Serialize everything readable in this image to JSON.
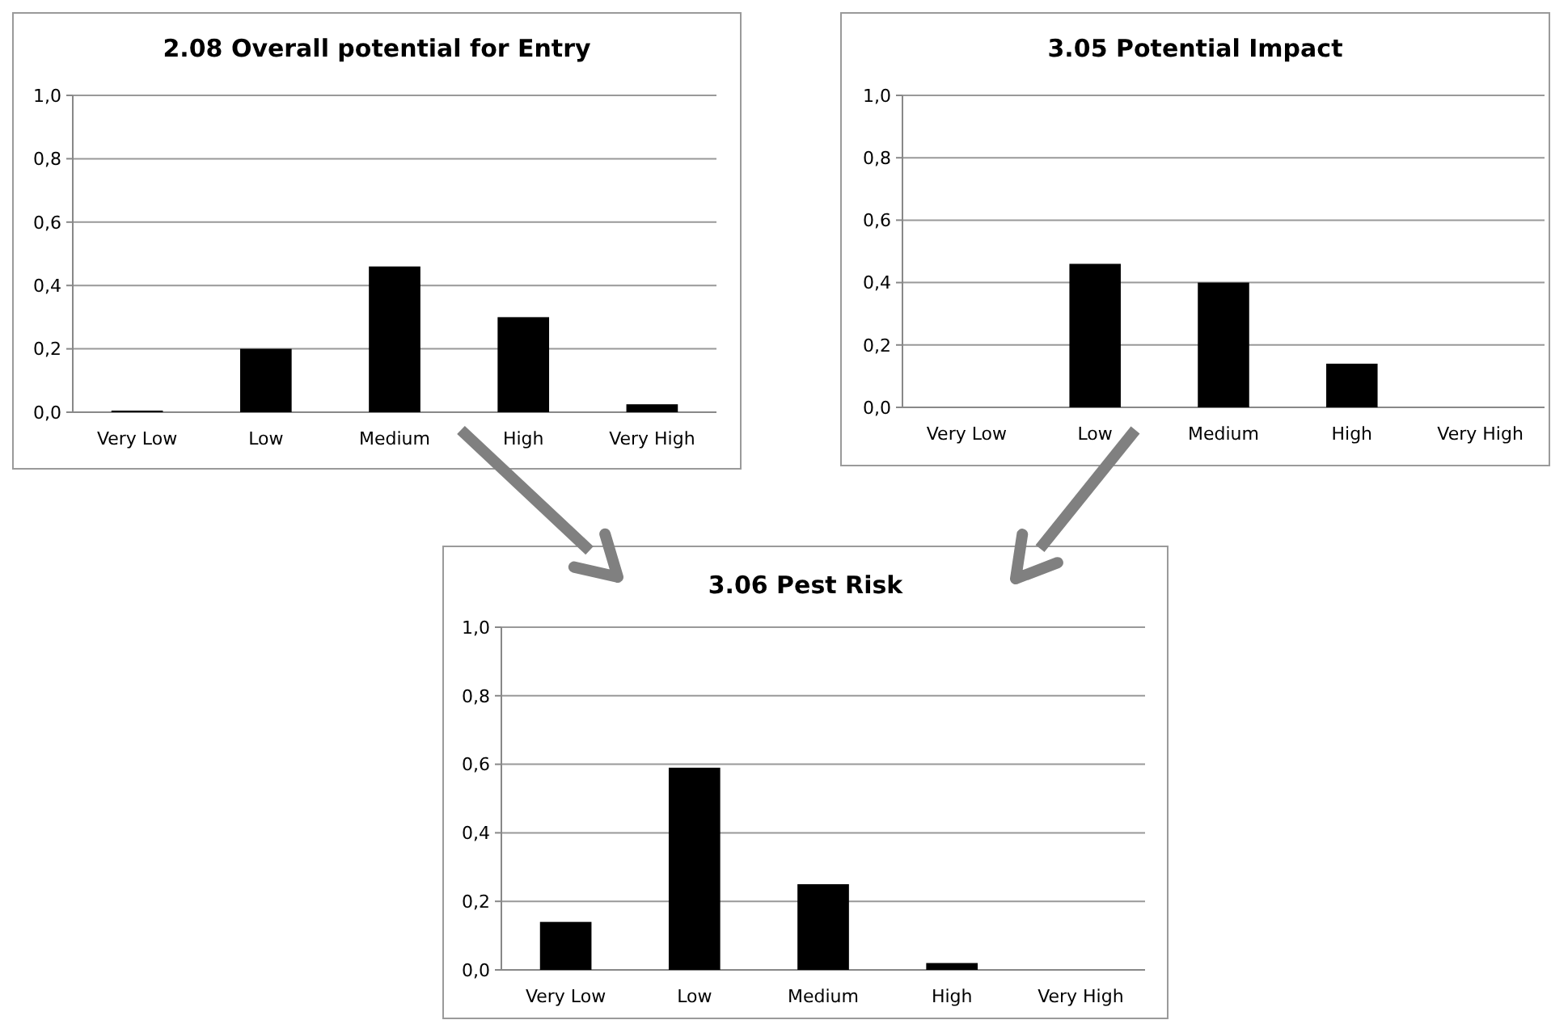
{
  "chart_data": [
    {
      "type": "bar",
      "title": "2.08 Overall potential  for Entry",
      "categories": [
        "Very Low",
        "Low",
        "Medium",
        "High",
        "Very High"
      ],
      "values": [
        0.005,
        0.2,
        0.46,
        0.3,
        0.025
      ],
      "color": "#000000",
      "ylim": [
        0,
        1
      ],
      "yticks": [
        {
          "value": 0,
          "label": "0,0"
        },
        {
          "value": 0.2,
          "label": "0,2"
        },
        {
          "value": 0.4,
          "label": "0,4"
        },
        {
          "value": 0.6,
          "label": "0,6"
        },
        {
          "value": 0.8,
          "label": "0,8"
        },
        {
          "value": 1,
          "label": "1,0"
        }
      ],
      "grid": "y"
    },
    {
      "type": "bar",
      "title": "3.05 Potential Impact",
      "categories": [
        "Very Low",
        "Low",
        "Medium",
        "High",
        "Very High"
      ],
      "values": [
        0,
        0.46,
        0.4,
        0.14,
        0
      ],
      "color": "#000000",
      "ylim": [
        0,
        1
      ],
      "yticks": [
        {
          "value": 0,
          "label": "0,0"
        },
        {
          "value": 0.2,
          "label": "0,2"
        },
        {
          "value": 0.4,
          "label": "0,4"
        },
        {
          "value": 0.6,
          "label": "0,6"
        },
        {
          "value": 0.8,
          "label": "0,8"
        },
        {
          "value": 1,
          "label": "1,0"
        }
      ],
      "grid": "y"
    },
    {
      "type": "bar",
      "title": "3.06 Pest Risk",
      "categories": [
        "Very Low",
        "Low",
        "Medium",
        "High",
        "Very High"
      ],
      "values": [
        0.14,
        0.59,
        0.25,
        0.02,
        0
      ],
      "color": "#000000",
      "ylim": [
        0,
        1
      ],
      "yticks": [
        {
          "value": 0,
          "label": "0,0"
        },
        {
          "value": 0.2,
          "label": "0,2"
        },
        {
          "value": 0.4,
          "label": "0,4"
        },
        {
          "value": 0.6,
          "label": "0,6"
        },
        {
          "value": 0.8,
          "label": "0,8"
        },
        {
          "value": 1,
          "label": "1,0"
        }
      ],
      "grid": "y"
    }
  ]
}
